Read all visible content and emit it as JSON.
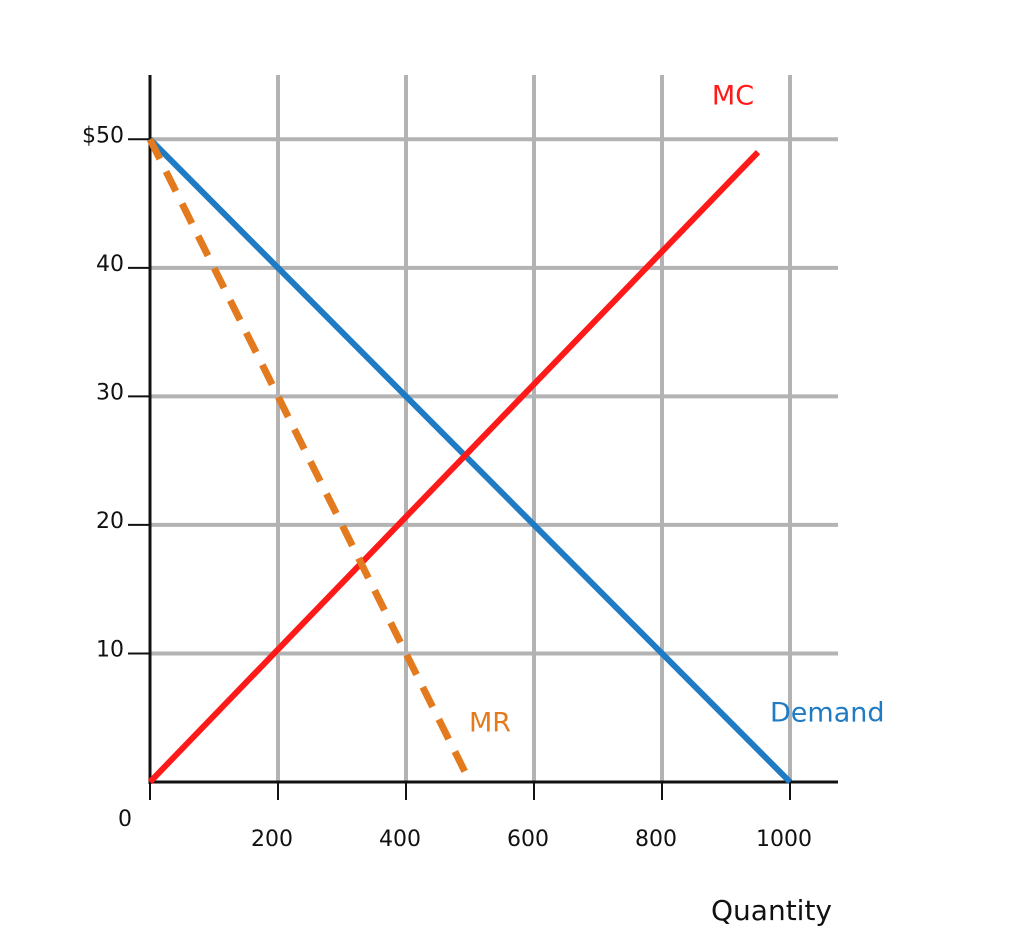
{
  "chart_data": {
    "type": "line",
    "x_label": "Quantity",
    "xlim": [
      0,
      1075
    ],
    "ylim": [
      0,
      55
    ],
    "xticks": [
      0,
      200,
      400,
      600,
      800,
      1000
    ],
    "yticks": [
      10,
      20,
      30,
      40,
      {
        "value": 50,
        "label": "$50"
      }
    ],
    "grid": true,
    "series": [
      {
        "name": "Demand",
        "color": "#1f7bc4",
        "dashed": false,
        "x": [
          0,
          1000
        ],
        "values": [
          50,
          0
        ]
      },
      {
        "name": "MC",
        "color": "#ff1a1a",
        "dashed": false,
        "x": [
          0,
          950
        ],
        "values": [
          0,
          49
        ]
      },
      {
        "name": "MR",
        "color": "#e47a1e",
        "dashed": true,
        "x": [
          0,
          500
        ],
        "values": [
          50,
          0
        ]
      }
    ]
  }
}
